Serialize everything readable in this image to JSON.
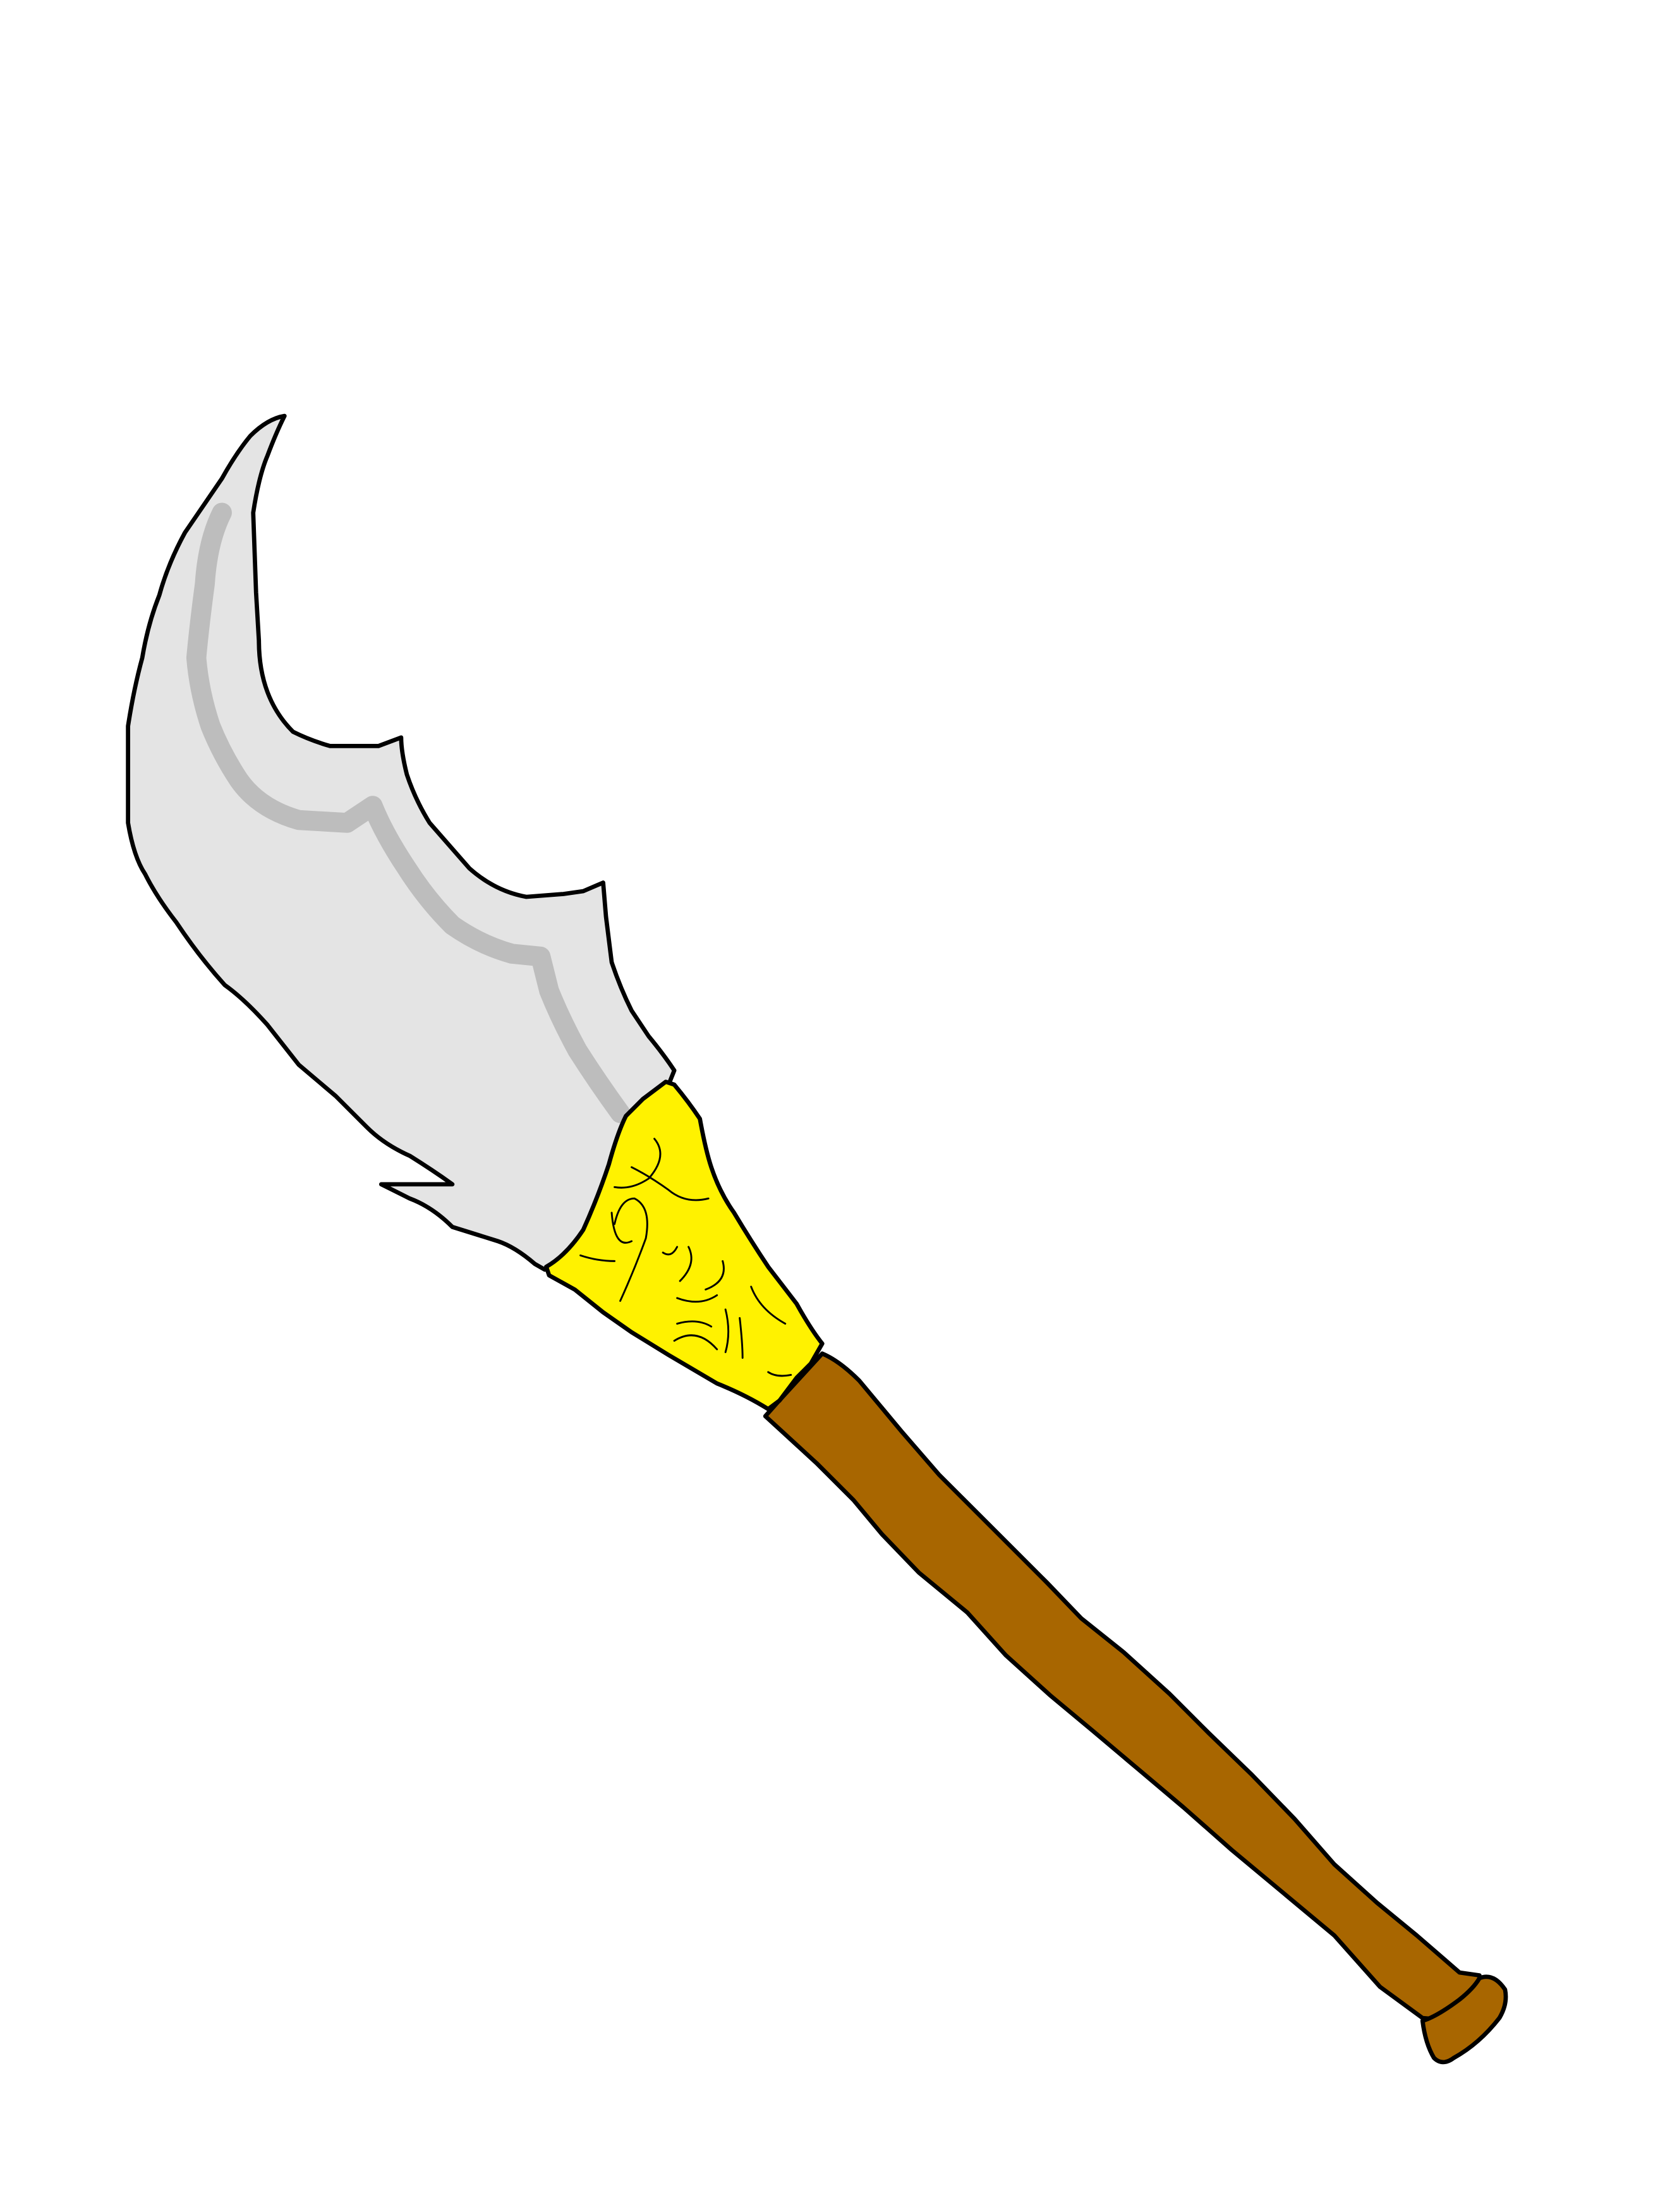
{
  "colors": {
    "background": "#ffffff",
    "outline": "#000000",
    "blade": "#e4e4e4",
    "blade_shade": "#bdbdbd",
    "grip_wrap": "#fff200",
    "handle": "#a86600",
    "pommel": "#a86600"
  },
  "subject": {
    "icon": "axe-weapon-icon",
    "parts": [
      "blade",
      "blade-shade",
      "grip-wrap",
      "handle",
      "pommel"
    ]
  }
}
